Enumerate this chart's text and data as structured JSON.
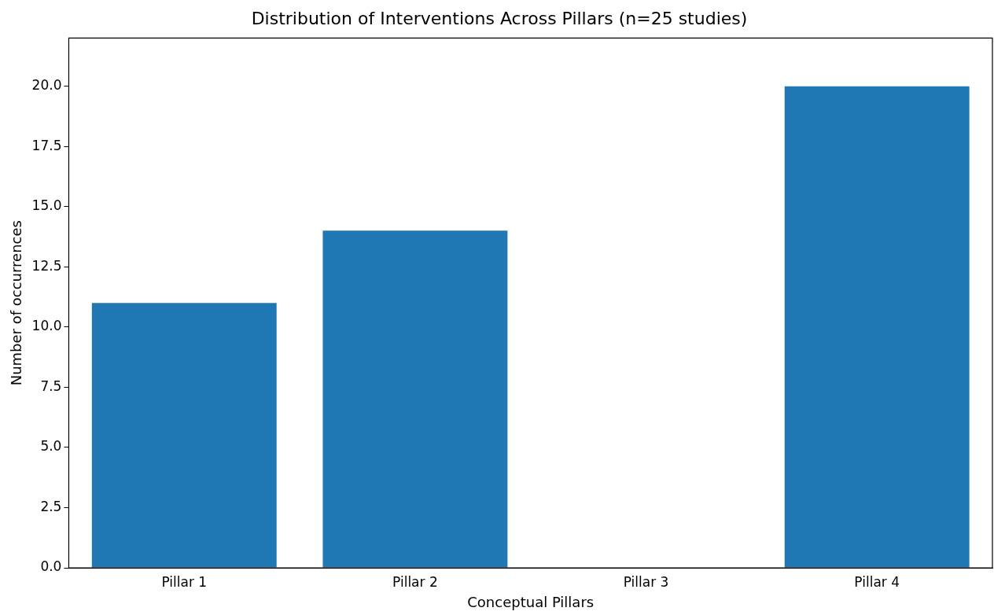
{
  "chart_data": {
    "type": "bar",
    "title": "Distribution of Interventions Across Pillars (n=25 studies)",
    "xlabel": "Conceptual Pillars",
    "ylabel": "Number of occurrences",
    "categories": [
      "Pillar 1",
      "Pillar 2",
      "Pillar 3",
      "Pillar 4"
    ],
    "values": [
      11,
      14,
      0,
      20
    ],
    "color": "#1f77b4",
    "ylim": [
      0,
      22
    ],
    "yticks": [
      {
        "value": 0,
        "label": "0.0"
      },
      {
        "value": 2.5,
        "label": "2.5"
      },
      {
        "value": 5,
        "label": "5.0"
      },
      {
        "value": 7.5,
        "label": "7.5"
      },
      {
        "value": 10,
        "label": "10.0"
      },
      {
        "value": 12.5,
        "label": "12.5"
      },
      {
        "value": 15,
        "label": "15.0"
      },
      {
        "value": 17.5,
        "label": "17.5"
      },
      {
        "value": 20,
        "label": "20.0"
      }
    ],
    "grid": false,
    "legend": false
  }
}
